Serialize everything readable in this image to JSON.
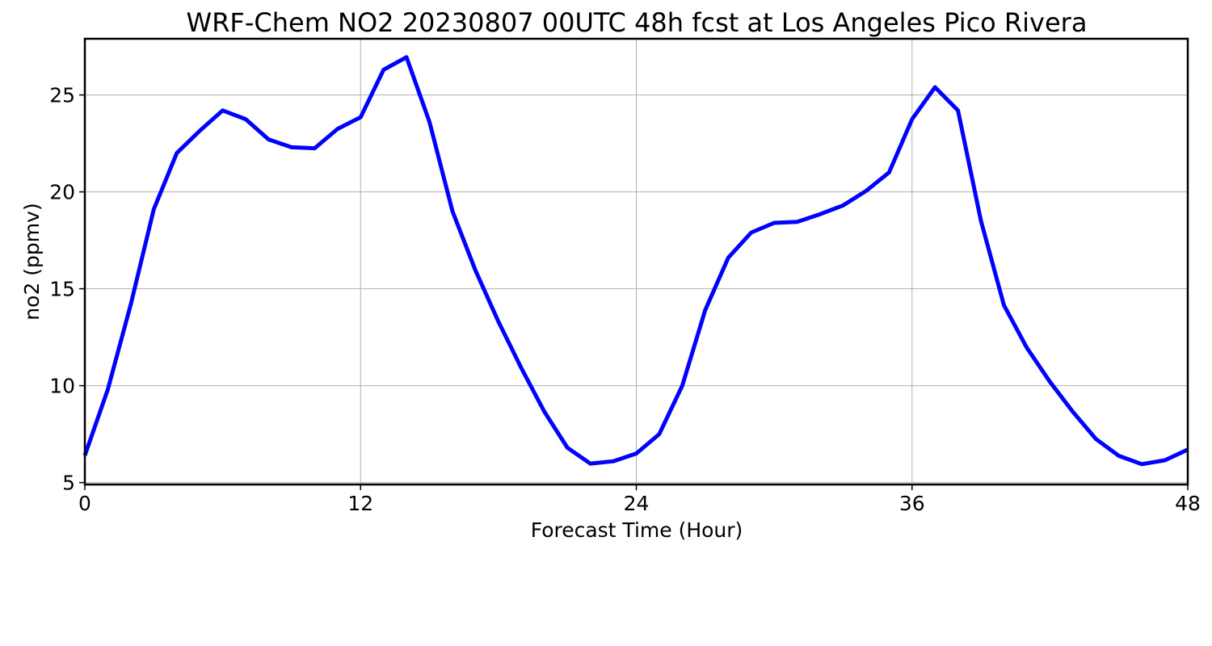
{
  "chart_data": {
    "type": "line",
    "title": "WRF-Chem NO2  20230807 00UTC 48h fcst at Los Angeles Pico Rivera",
    "xlabel": "Forecast Time (Hour)",
    "ylabel": "no2  (ppmv)",
    "xlim": [
      0,
      48
    ],
    "ylim": [
      4.9,
      27.9
    ],
    "xticks": [
      0,
      12,
      24,
      36,
      48
    ],
    "yticks": [
      5,
      10,
      15,
      20,
      25
    ],
    "grid": true,
    "series": [
      {
        "color": "#0000ff",
        "x": [
          0,
          1,
          2,
          3,
          4,
          5,
          6,
          7,
          8,
          9,
          10,
          11,
          12,
          13,
          14,
          15,
          16,
          17,
          18,
          19,
          20,
          21,
          22,
          23,
          24,
          25,
          26,
          27,
          28,
          29,
          30,
          31,
          32,
          33,
          34,
          35,
          36,
          37,
          38,
          39,
          40,
          41,
          42,
          43,
          44,
          45,
          46,
          47,
          48
        ],
        "y": [
          6.4,
          9.8,
          14.2,
          19.1,
          22.0,
          23.15,
          24.2,
          23.75,
          22.7,
          22.3,
          22.25,
          23.25,
          23.85,
          26.3,
          26.95,
          23.6,
          19.0,
          15.95,
          13.3,
          10.9,
          8.65,
          6.8,
          5.98,
          6.1,
          6.5,
          7.5,
          10.0,
          13.9,
          16.6,
          17.9,
          18.4,
          18.45,
          18.85,
          19.3,
          20.05,
          21.0,
          23.75,
          25.4,
          24.2,
          18.5,
          14.15,
          11.95,
          10.2,
          8.65,
          7.25,
          6.38,
          5.95,
          6.15,
          6.7
        ]
      }
    ]
  }
}
